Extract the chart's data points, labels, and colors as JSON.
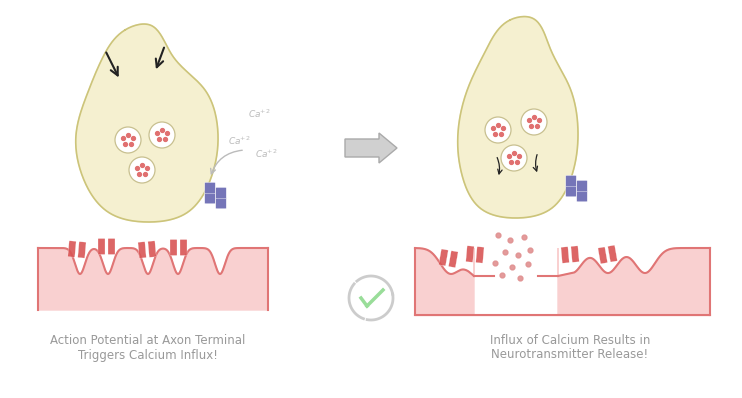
{
  "bg_color": "#ffffff",
  "axon_fill": "#f5f0d0",
  "axon_stroke": "#ccc47a",
  "postsynaptic_fill": "#f9d0d0",
  "postsynaptic_stroke": "#e07575",
  "vesicle_fill": "#ffffff",
  "vesicle_stroke": "#c8c090",
  "dot_color": "#e07070",
  "receptor_color": "#d95555",
  "channel_color": "#7575b8",
  "arrow_color": "#222222",
  "ca_color": "#bbbbbb",
  "check_color": "#99dd99",
  "recycle_color": "#cccccc",
  "neurotransmitter_color": "#e09090",
  "center_arrow_fill": "#d0d0d0",
  "center_arrow_stroke": "#aaaaaa",
  "label1_line1": "Action Potential at Axon Terminal",
  "label1_line2": "Triggers Calcium Influx!",
  "label2_line1": "Influx of Calcium Results in",
  "label2_line2": "Neurotransmitter Release!",
  "label_color": "#999999",
  "label_fontsize": 8.5
}
